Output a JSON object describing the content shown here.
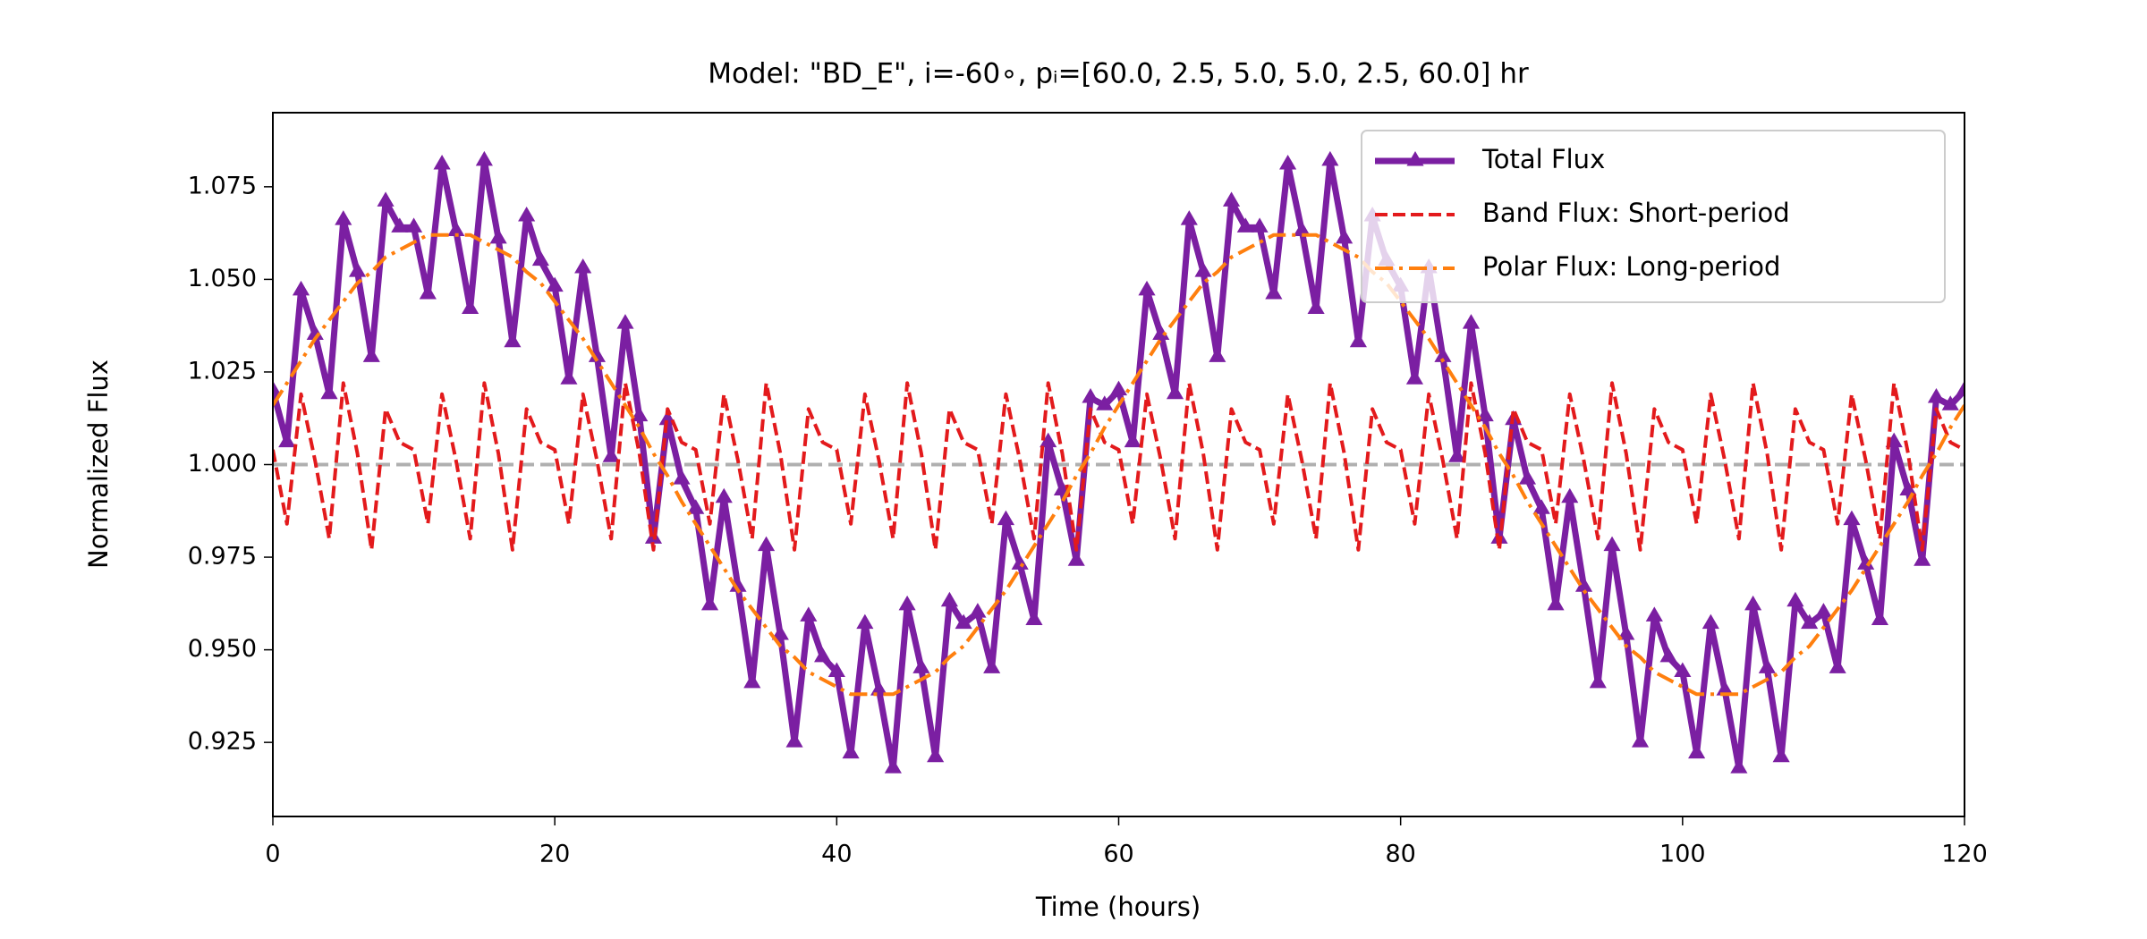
{
  "chart_data": {
    "type": "line",
    "title": "Model: \"BD_E\", i=-60∘, pᵢ=[60.0, 2.5, 5.0, 5.0, 2.5, 60.0] hr",
    "xlabel": "Time (hours)",
    "ylabel": "Normalized Flux",
    "xlim": [
      0,
      120
    ],
    "ylim": [
      0.905,
      1.095
    ],
    "xticks": [
      0,
      20,
      40,
      60,
      80,
      100,
      120
    ],
    "yticks": [
      0.925,
      {
        "value": 0.95,
        "label": "0.950"
      },
      0.975,
      {
        "value": 1,
        "label": "1.000"
      },
      1.025,
      {
        "value": 1.05,
        "label": "1.050"
      },
      1.075
    ],
    "hline": {
      "value": 1,
      "color": "#b0b0b0"
    },
    "legend": "upper right",
    "x": [
      0,
      1,
      2,
      3,
      4,
      5,
      6,
      7,
      8,
      9,
      10,
      11,
      12,
      13,
      14,
      15,
      16,
      17,
      18,
      19,
      20,
      21,
      22,
      23,
      24,
      25,
      26,
      27,
      28,
      29,
      30,
      31,
      32,
      33,
      34,
      35,
      36,
      37,
      38,
      39,
      40,
      41,
      42,
      43,
      44,
      45,
      46,
      47,
      48,
      49,
      50,
      51,
      52,
      53,
      54,
      55,
      56,
      57,
      58,
      59,
      60,
      61,
      62,
      63,
      64,
      65,
      66,
      67,
      68,
      69,
      70,
      71,
      72,
      73,
      74,
      75,
      76,
      77,
      78,
      79,
      80,
      81,
      82,
      83,
      84,
      85,
      86,
      87,
      88,
      89,
      90,
      91,
      92,
      93,
      94,
      95,
      96,
      97,
      98,
      99,
      100,
      101,
      102,
      103,
      104,
      105,
      106,
      107,
      108,
      109,
      110,
      111,
      112,
      113,
      114,
      115,
      116,
      117,
      118,
      119,
      120
    ],
    "series": [
      {
        "name": "Total Flux",
        "color": "#7b1fa2",
        "style": "solid",
        "marker": "triangle",
        "values": [
          1.02,
          1.006,
          1.047,
          1.035,
          1.019,
          1.066,
          1.052,
          1.029,
          1.071,
          1.064,
          1.064,
          1.046,
          1.081,
          1.063,
          1.042,
          1.082,
          1.061,
          1.033,
          1.067,
          1.055,
          1.048,
          1.023,
          1.053,
          1.029,
          1.002,
          1.038,
          1.013,
          0.98,
          1.012,
          0.996,
          0.988,
          0.962,
          0.991,
          0.967,
          0.941,
          0.978,
          0.954,
          0.925,
          0.959,
          0.948,
          0.944,
          0.922,
          0.957,
          0.939,
          0.918,
          0.962,
          0.945,
          0.921,
          0.963,
          0.957,
          0.96,
          0.945,
          0.985,
          0.973,
          0.958,
          1.006,
          0.993,
          0.974,
          1.018,
          1.016,
          1.02,
          1.006,
          1.047,
          1.035,
          1.019,
          1.066,
          1.052,
          1.029,
          1.071,
          1.064,
          1.064,
          1.046,
          1.081,
          1.063,
          1.042,
          1.082,
          1.061,
          1.033,
          1.067,
          1.055,
          1.048,
          1.023,
          1.053,
          1.029,
          1.002,
          1.038,
          1.013,
          0.98,
          1.012,
          0.996,
          0.988,
          0.962,
          0.991,
          0.967,
          0.941,
          0.978,
          0.954,
          0.925,
          0.959,
          0.948,
          0.944,
          0.922,
          0.957,
          0.939,
          0.918,
          0.962,
          0.945,
          0.921,
          0.963,
          0.957,
          0.96,
          0.945,
          0.985,
          0.973,
          0.958,
          1.006,
          0.993,
          0.974,
          1.018,
          1.016,
          1.02
        ]
      },
      {
        "name": "Band Flux: Short-period",
        "color": "#e31a1c",
        "style": "dashed",
        "values": [
          1.004,
          0.984,
          1.019,
          1.001,
          0.98,
          1.022,
          1.003,
          0.977,
          1.015,
          1.006,
          1.004,
          0.984,
          1.019,
          1.001,
          0.98,
          1.022,
          1.003,
          0.977,
          1.015,
          1.006,
          1.004,
          0.984,
          1.019,
          1.001,
          0.98,
          1.022,
          1.003,
          0.977,
          1.015,
          1.006,
          1.004,
          0.984,
          1.019,
          1.001,
          0.98,
          1.022,
          1.003,
          0.977,
          1.015,
          1.006,
          1.004,
          0.984,
          1.019,
          1.001,
          0.98,
          1.022,
          1.003,
          0.977,
          1.015,
          1.006,
          1.004,
          0.984,
          1.019,
          1.001,
          0.98,
          1.022,
          1.003,
          0.977,
          1.015,
          1.006,
          1.004,
          0.984,
          1.019,
          1.001,
          0.98,
          1.022,
          1.003,
          0.977,
          1.015,
          1.006,
          1.004,
          0.984,
          1.019,
          1.001,
          0.98,
          1.022,
          1.003,
          0.977,
          1.015,
          1.006,
          1.004,
          0.984,
          1.019,
          1.001,
          0.98,
          1.022,
          1.003,
          0.977,
          1.015,
          1.006,
          1.004,
          0.984,
          1.019,
          1.001,
          0.98,
          1.022,
          1.003,
          0.977,
          1.015,
          1.006,
          1.004,
          0.984,
          1.019,
          1.001,
          0.98,
          1.022,
          1.003,
          0.977,
          1.015,
          1.006,
          1.004,
          0.984,
          1.019,
          1.001,
          0.98,
          1.022,
          1.003,
          0.977,
          1.015,
          1.006,
          1.004
        ]
      },
      {
        "name": "Polar Flux: Long-period",
        "color": "#ff7f0e",
        "style": "dashdot",
        "values": [
          1.016,
          1.022,
          1.028,
          1.034,
          1.039,
          1.044,
          1.049,
          1.052,
          1.056,
          1.058,
          1.06,
          1.062,
          1.062,
          1.062,
          1.062,
          1.06,
          1.058,
          1.056,
          1.052,
          1.049,
          1.044,
          1.039,
          1.034,
          1.028,
          1.022,
          1.016,
          1.01,
          1.003,
          0.997,
          0.99,
          0.984,
          0.978,
          0.972,
          0.966,
          0.961,
          0.956,
          0.951,
          0.948,
          0.944,
          0.942,
          0.94,
          0.938,
          0.938,
          0.938,
          0.938,
          0.94,
          0.942,
          0.944,
          0.948,
          0.951,
          0.956,
          0.961,
          0.966,
          0.972,
          0.978,
          0.984,
          0.99,
          0.997,
          1.003,
          1.01,
          1.016,
          1.022,
          1.028,
          1.034,
          1.039,
          1.044,
          1.049,
          1.052,
          1.056,
          1.058,
          1.06,
          1.062,
          1.062,
          1.062,
          1.062,
          1.06,
          1.058,
          1.056,
          1.052,
          1.049,
          1.044,
          1.039,
          1.034,
          1.028,
          1.022,
          1.016,
          1.01,
          1.003,
          0.997,
          0.99,
          0.984,
          0.978,
          0.972,
          0.966,
          0.961,
          0.956,
          0.951,
          0.948,
          0.944,
          0.942,
          0.94,
          0.938,
          0.938,
          0.938,
          0.938,
          0.94,
          0.942,
          0.944,
          0.948,
          0.951,
          0.956,
          0.961,
          0.966,
          0.972,
          0.978,
          0.984,
          0.99,
          0.997,
          1.003,
          1.01,
          1.016
        ]
      }
    ]
  }
}
